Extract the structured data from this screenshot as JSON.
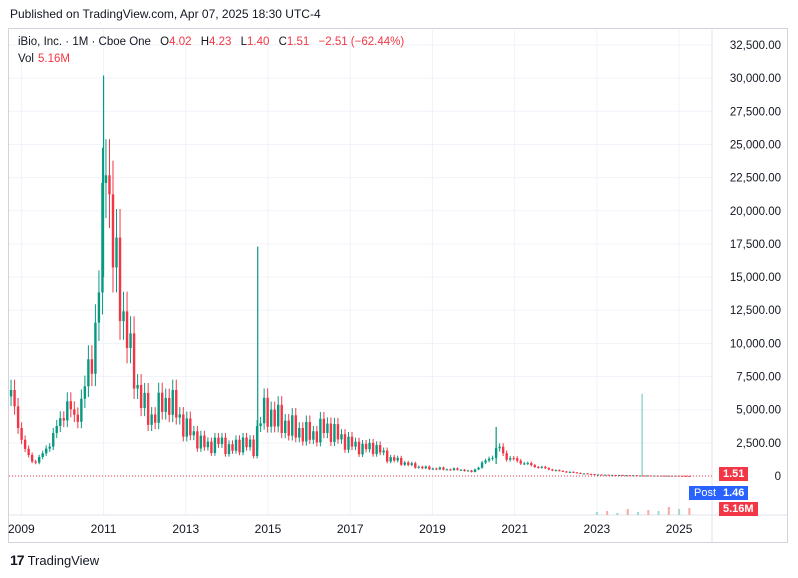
{
  "header": {
    "published": "Published on TradingView.com, Apr 07, 2025 18:30 UTC-4"
  },
  "legend": {
    "symbol": "iBio, Inc. · 1M · Cboe One",
    "open_label": "O",
    "open": "4.02",
    "high_label": "H",
    "high": "4.23",
    "low_label": "L",
    "low": "1.40",
    "close_label": "C",
    "close": "1.51",
    "change": "−2.51 (−62.44%)",
    "vol_label": "Vol",
    "vol": "5.16M"
  },
  "price_tags": {
    "last": "1.51",
    "post_label": "Post",
    "post": "1.46",
    "volume": "5.16M"
  },
  "footer": {
    "brand": "TradingView",
    "logo_text": "17"
  },
  "colors": {
    "up": "#089981",
    "down": "#f23645",
    "post": "#2962ff",
    "grid": "#f0f3fa"
  },
  "chart_data": {
    "type": "candlestick",
    "y_ticks": [
      "32,500.00",
      "30,000.00",
      "27,500.00",
      "25,000.00",
      "22,500.00",
      "20,000.00",
      "17,500.00",
      "15,000.00",
      "12,500.00",
      "10,000.00",
      "7,500.00",
      "5,000.00",
      "2,500.00",
      "0"
    ],
    "x_ticks": [
      "2009",
      "2011",
      "2013",
      "2015",
      "2017",
      "2019",
      "2021",
      "2023",
      "2025"
    ],
    "ylim": [
      0,
      33500
    ],
    "xlim": [
      2008.7,
      2025.8
    ],
    "series": [
      {
        "t": 2008.75,
        "v": 6000
      },
      {
        "t": 2008.9,
        "v": 4200
      },
      {
        "t": 2009.1,
        "v": 1800
      },
      {
        "t": 2009.3,
        "v": 1000
      },
      {
        "t": 2009.5,
        "v": 1500
      },
      {
        "t": 2009.7,
        "v": 2600
      },
      {
        "t": 2009.9,
        "v": 3800
      },
      {
        "t": 2010.1,
        "v": 5500
      },
      {
        "t": 2010.3,
        "v": 4200
      },
      {
        "t": 2010.5,
        "v": 6000
      },
      {
        "t": 2010.7,
        "v": 8800
      },
      {
        "t": 2010.85,
        "v": 12500
      },
      {
        "t": 2010.95,
        "v": 16500
      },
      {
        "t": 2011.05,
        "v": 27500
      },
      {
        "t": 2011.2,
        "v": 17000
      },
      {
        "t": 2011.35,
        "v": 14500
      },
      {
        "t": 2011.5,
        "v": 12000
      },
      {
        "t": 2011.7,
        "v": 8000
      },
      {
        "t": 2011.9,
        "v": 6000
      },
      {
        "t": 2012.1,
        "v": 4200
      },
      {
        "t": 2012.3,
        "v": 5000
      },
      {
        "t": 2012.6,
        "v": 5800
      },
      {
        "t": 2012.9,
        "v": 4000
      },
      {
        "t": 2013.2,
        "v": 3000
      },
      {
        "t": 2013.5,
        "v": 2200
      },
      {
        "t": 2013.8,
        "v": 2600
      },
      {
        "t": 2014.1,
        "v": 2000
      },
      {
        "t": 2014.4,
        "v": 2600
      },
      {
        "t": 2014.65,
        "v": 2000
      },
      {
        "t": 2014.8,
        "v": 4500
      },
      {
        "t": 2015.0,
        "v": 4800
      },
      {
        "t": 2015.2,
        "v": 4300
      },
      {
        "t": 2015.5,
        "v": 3700
      },
      {
        "t": 2015.8,
        "v": 3300
      },
      {
        "t": 2016.1,
        "v": 3100
      },
      {
        "t": 2016.4,
        "v": 3700
      },
      {
        "t": 2016.7,
        "v": 3000
      },
      {
        "t": 2017.0,
        "v": 2400
      },
      {
        "t": 2017.3,
        "v": 2100
      },
      {
        "t": 2017.6,
        "v": 2200
      },
      {
        "t": 2017.9,
        "v": 1400
      },
      {
        "t": 2018.2,
        "v": 1100
      },
      {
        "t": 2018.5,
        "v": 800
      },
      {
        "t": 2018.8,
        "v": 600
      },
      {
        "t": 2019.1,
        "v": 550
      },
      {
        "t": 2019.4,
        "v": 500
      },
      {
        "t": 2019.7,
        "v": 480
      },
      {
        "t": 2019.95,
        "v": 300
      },
      {
        "t": 2020.2,
        "v": 900
      },
      {
        "t": 2020.45,
        "v": 1500
      },
      {
        "t": 2020.6,
        "v": 2200
      },
      {
        "t": 2020.8,
        "v": 1400
      },
      {
        "t": 2021.1,
        "v": 1100
      },
      {
        "t": 2021.4,
        "v": 800
      },
      {
        "t": 2021.7,
        "v": 600
      },
      {
        "t": 2022.0,
        "v": 400
      },
      {
        "t": 2022.3,
        "v": 300
      },
      {
        "t": 2022.6,
        "v": 200
      },
      {
        "t": 2022.9,
        "v": 120
      },
      {
        "t": 2023.3,
        "v": 80
      },
      {
        "t": 2023.7,
        "v": 60
      },
      {
        "t": 2024.0,
        "v": 40
      },
      {
        "t": 2024.3,
        "v": 30
      },
      {
        "t": 2024.6,
        "v": 25
      },
      {
        "t": 2024.9,
        "v": 20
      },
      {
        "t": 2025.2,
        "v": 10
      },
      {
        "t": 2025.27,
        "v": 1.51
      }
    ],
    "spikes": [
      {
        "t": 2011.0,
        "high": 30200,
        "low": 15000
      },
      {
        "t": 2014.75,
        "high": 17300,
        "low": 2000
      },
      {
        "t": 2024.1,
        "high": 6200,
        "low": 0
      },
      {
        "t": 2020.55,
        "high": 3700,
        "low": 900
      }
    ]
  }
}
